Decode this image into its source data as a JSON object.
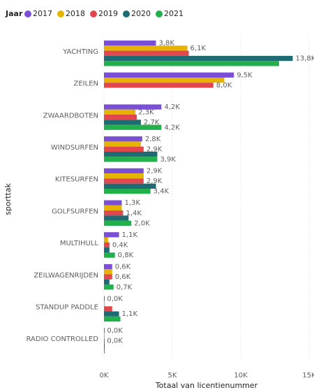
{
  "chart_data": {
    "type": "hbar",
    "legend_title": "Jaar",
    "legend_position": "top-left",
    "ylabel": "sporttak",
    "xlabel": "Totaal van licentienummer",
    "categories": [
      "YACHTING",
      "ZEILEN",
      "ZWAARDBOTEN",
      "WINDSURFEN",
      "KITESURFEN",
      "GOLFSURFEN",
      "MULTIHULL",
      "ZEILWAGENRIJDEN",
      "STANDUP PADDLE",
      "RADIO CONTROLLED"
    ],
    "xlim": [
      0,
      15000
    ],
    "xticks": [
      {
        "value": 0,
        "label": "0K"
      },
      {
        "value": 5000,
        "label": "5K"
      },
      {
        "value": 10000,
        "label": "10K"
      },
      {
        "value": 15000,
        "label": "15K"
      }
    ],
    "grid": true,
    "series": [
      {
        "name": "2017",
        "color": "#7A4FD6",
        "values": [
          3800,
          9500,
          4200,
          2800,
          2900,
          1300,
          1100,
          600,
          20,
          20
        ],
        "value_labels": [
          "3,8K",
          "9,5K",
          "4,2K",
          "2,8K",
          "2,9K",
          "1,3K",
          "1,1K",
          "0,6K",
          "0,0K",
          "0,0K"
        ]
      },
      {
        "name": "2018",
        "color": "#E6B300",
        "values": [
          6100,
          8800,
          2300,
          2700,
          2900,
          1300,
          300,
          600,
          50,
          20
        ],
        "value_labels": [
          "6,1K",
          null,
          "2,3K",
          null,
          null,
          null,
          null,
          null,
          null,
          null
        ]
      },
      {
        "name": "2019",
        "color": "#E0484E",
        "values": [
          6200,
          8000,
          2400,
          2900,
          2900,
          1400,
          400,
          600,
          600,
          20
        ],
        "value_labels": [
          null,
          "8,0K",
          null,
          "2,9K",
          "2,9K",
          "1,4K",
          "0,4K",
          "0,6K",
          null,
          "0,0K"
        ]
      },
      {
        "name": "2020",
        "color": "#1E6B74",
        "values": [
          13800,
          null,
          2700,
          3900,
          3800,
          1800,
          400,
          400,
          1100,
          20
        ],
        "value_labels": [
          "13,8K",
          null,
          "2,7K",
          null,
          null,
          null,
          null,
          null,
          "1,1K",
          null
        ]
      },
      {
        "name": "2021",
        "color": "#21B04B",
        "values": [
          12800,
          null,
          4200,
          3900,
          3400,
          2000,
          800,
          700,
          1200,
          20
        ],
        "value_labels": [
          null,
          null,
          "4,2K",
          "3,9K",
          "3,4K",
          "2,0K",
          "0,8K",
          "0,7K",
          null,
          null
        ]
      }
    ]
  }
}
